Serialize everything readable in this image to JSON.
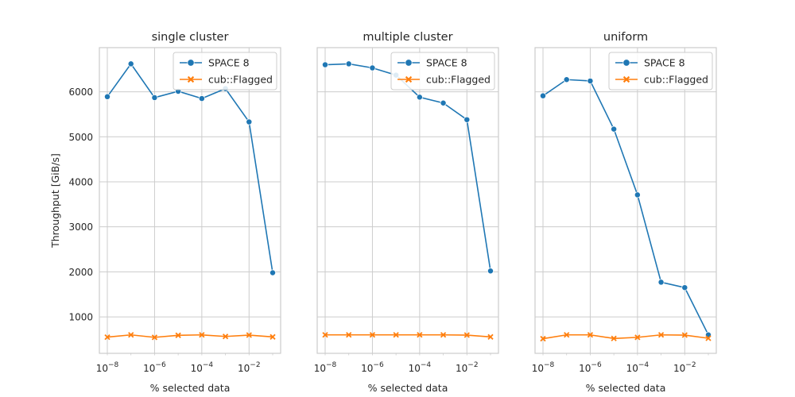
{
  "chart_data": [
    {
      "type": "line",
      "title": "single cluster",
      "xlabel": "% selected data",
      "ylabel": "Throughput [GiB/s]",
      "xscale": "log",
      "x": [
        1e-08,
        1e-07,
        1e-06,
        1e-05,
        0.0001,
        0.001,
        0.01,
        0.1
      ],
      "xticks": [
        1e-08,
        1e-06,
        0.0001,
        0.01
      ],
      "xtick_labels": [
        {
          "base": "10",
          "exp": "−8"
        },
        {
          "base": "10",
          "exp": "−6"
        },
        {
          "base": "10",
          "exp": "−4"
        },
        {
          "base": "10",
          "exp": "−2"
        }
      ],
      "ylim": [
        190,
        6980
      ],
      "yticks": [
        1000,
        2000,
        3000,
        4000,
        5000,
        6000
      ],
      "series": [
        {
          "name": "SPACE 8",
          "color": "#1f77b4",
          "marker": "circle",
          "values": [
            5890,
            6620,
            5870,
            6010,
            5850,
            6070,
            5330,
            1980
          ]
        },
        {
          "name": "cub::Flagged",
          "color": "#ff7f0e",
          "marker": "x",
          "values": [
            550,
            600,
            545,
            590,
            600,
            565,
            595,
            555
          ]
        }
      ],
      "legend": "top-right",
      "grid": true
    },
    {
      "type": "line",
      "title": "multiple cluster",
      "xlabel": "% selected data",
      "xscale": "log",
      "x": [
        1e-08,
        1e-07,
        1e-06,
        1e-05,
        0.0001,
        0.001,
        0.01,
        0.1
      ],
      "xticks": [
        1e-08,
        1e-06,
        0.0001,
        0.01
      ],
      "xtick_labels": [
        {
          "base": "10",
          "exp": "−8"
        },
        {
          "base": "10",
          "exp": "−6"
        },
        {
          "base": "10",
          "exp": "−4"
        },
        {
          "base": "10",
          "exp": "−2"
        }
      ],
      "ylim": [
        190,
        6980
      ],
      "yticks": [
        1000,
        2000,
        3000,
        4000,
        5000,
        6000
      ],
      "series": [
        {
          "name": "SPACE 8",
          "color": "#1f77b4",
          "marker": "circle",
          "values": [
            6600,
            6620,
            6530,
            6370,
            5880,
            5750,
            5380,
            2020
          ]
        },
        {
          "name": "cub::Flagged",
          "color": "#ff7f0e",
          "marker": "x",
          "values": [
            600,
            600,
            600,
            600,
            600,
            600,
            595,
            555
          ]
        }
      ],
      "legend": "top-right",
      "grid": true
    },
    {
      "type": "line",
      "title": "uniform",
      "xlabel": "% selected data",
      "xscale": "log",
      "x": [
        1e-08,
        1e-07,
        1e-06,
        1e-05,
        0.0001,
        0.001,
        0.01,
        0.1
      ],
      "xticks": [
        1e-08,
        1e-06,
        0.0001,
        0.01
      ],
      "xtick_labels": [
        {
          "base": "10",
          "exp": "−8"
        },
        {
          "base": "10",
          "exp": "−6"
        },
        {
          "base": "10",
          "exp": "−4"
        },
        {
          "base": "10",
          "exp": "−2"
        }
      ],
      "ylim": [
        190,
        6980
      ],
      "yticks": [
        1000,
        2000,
        3000,
        4000,
        5000,
        6000
      ],
      "series": [
        {
          "name": "SPACE 8",
          "color": "#1f77b4",
          "marker": "circle",
          "values": [
            5910,
            6270,
            6240,
            5170,
            3710,
            1770,
            1650,
            600
          ]
        },
        {
          "name": "cub::Flagged",
          "color": "#ff7f0e",
          "marker": "x",
          "values": [
            515,
            600,
            600,
            520,
            545,
            600,
            595,
            525
          ]
        }
      ],
      "legend": "top-right",
      "grid": true
    }
  ],
  "ytick_labels": [
    "1000",
    "2000",
    "3000",
    "4000",
    "5000",
    "6000"
  ]
}
